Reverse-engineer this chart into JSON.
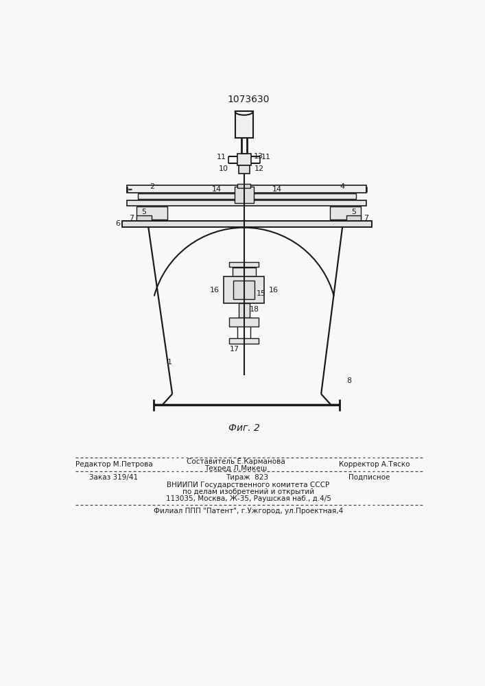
{
  "patent_number": "1073630",
  "fig_caption": "Фиг. 2",
  "background_color": "#f8f8f6",
  "line_color": "#1a1a1a",
  "footer": {
    "editor_line": "Редактор М.Петрова",
    "composer_line1": "Составитель Е.Карманова",
    "composer_line2": "Техред Л.Микеш",
    "corrector_line": "Корректор А.Тяско",
    "order_line": "Заказ 319/41",
    "tirazh_line": "Тираж  823",
    "podpisnoe_line": "Подписное",
    "vniip_line": "ВНИИПИ Государственного комитета СССР",
    "po_delam_line": "по делам изобретений и открытий",
    "address_line": "113035, Москва, Ж-35, Раушская наб., д.4/5",
    "filial_line": "Филиал ППП \"Патент\", г.Ужгород, ул.Проектная,4"
  }
}
